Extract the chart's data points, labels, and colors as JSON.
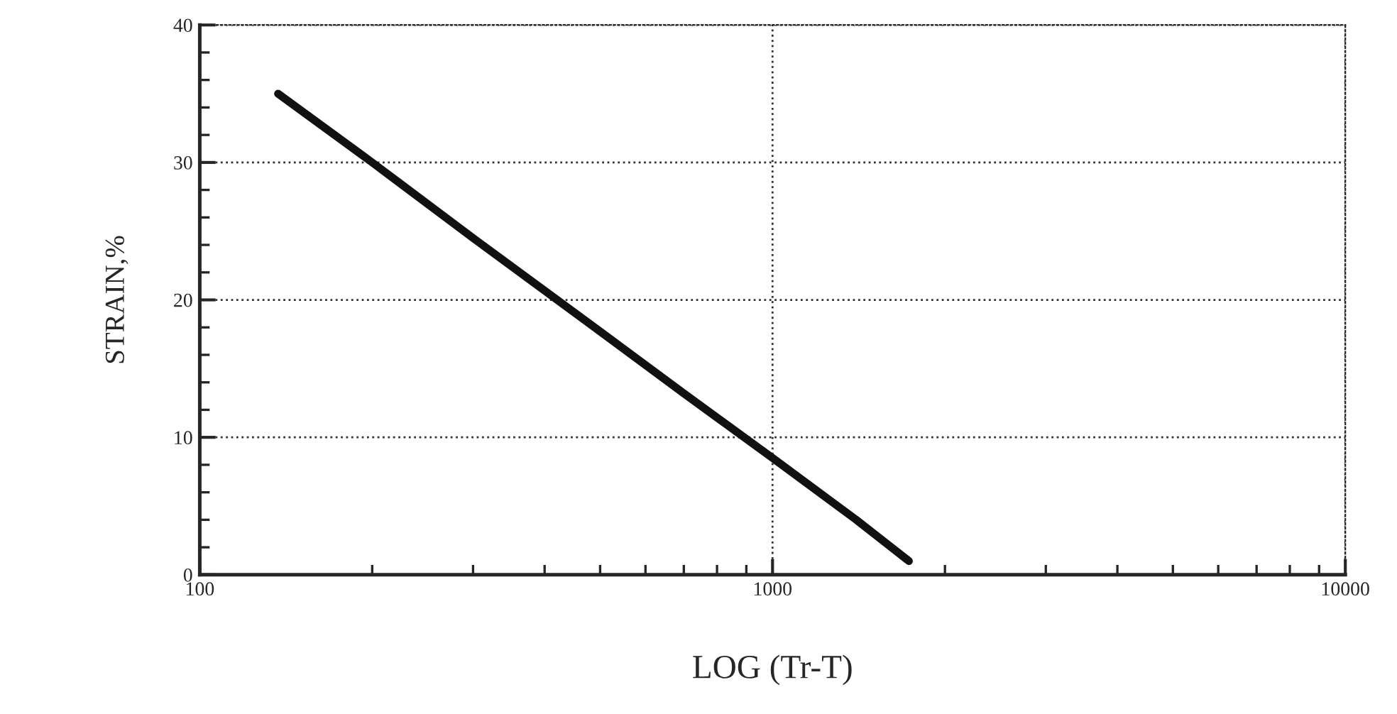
{
  "chart_data": {
    "type": "line",
    "xlabel": "LOG (Tr-T)",
    "ylabel": "STRAIN,%",
    "x": [
      137,
      200,
      300,
      500,
      700,
      1000,
      1400,
      1730
    ],
    "series": [
      {
        "color": "#111111",
        "values": [
          35,
          30,
          24.5,
          17.7,
          13.2,
          8.5,
          4,
          1
        ]
      }
    ],
    "log": "x",
    "xlim": [
      100,
      10000
    ],
    "xticks": [
      100,
      1000,
      10000
    ],
    "ylim": [
      0,
      40
    ],
    "yticks": [
      0,
      10,
      20,
      30,
      40
    ],
    "grid": true,
    "marker": "none",
    "line_style": "solid"
  }
}
